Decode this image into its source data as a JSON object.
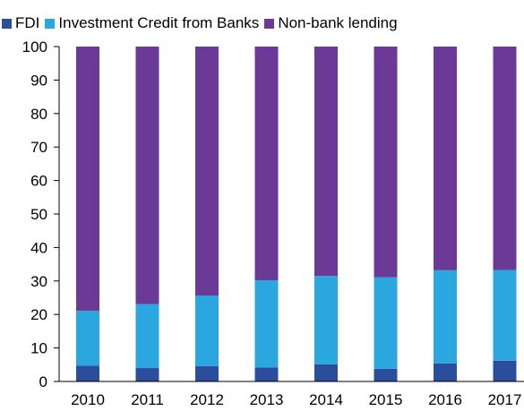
{
  "chart_data": {
    "type": "bar",
    "stacked": true,
    "categories": [
      "2010",
      "2011",
      "2012",
      "2013",
      "2014",
      "2015",
      "2016",
      "2017"
    ],
    "series": [
      {
        "name": "FDI",
        "color": "#2a4d9c",
        "values": [
          4.7,
          4.0,
          4.6,
          4.2,
          5.1,
          3.8,
          5.4,
          6.2
        ]
      },
      {
        "name": "Investment Credit from Banks",
        "color": "#2aa7df",
        "values": [
          16.4,
          19.1,
          21.0,
          26.0,
          26.4,
          27.3,
          27.8,
          27.1
        ]
      },
      {
        "name": "Non-bank lending",
        "color": "#6a3a96",
        "values": [
          78.9,
          76.9,
          74.4,
          69.8,
          68.5,
          68.9,
          66.8,
          66.7
        ]
      }
    ],
    "yticks": [
      "0",
      "10",
      "20",
      "30",
      "40",
      "50",
      "60",
      "70",
      "80",
      "90",
      "100"
    ],
    "ylim": [
      0,
      100
    ],
    "xlabel": "",
    "ylabel": "",
    "grid": false,
    "legend_position": "top"
  }
}
